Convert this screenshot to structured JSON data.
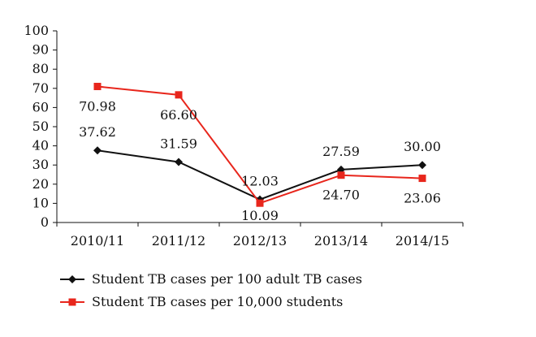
{
  "chart_data": {
    "type": "line",
    "categories": [
      "2010/11",
      "2011/12",
      "2012/13",
      "2013/14",
      "2014/15"
    ],
    "ylim": [
      0,
      100
    ],
    "yticks": [
      0,
      10,
      20,
      30,
      40,
      50,
      60,
      70,
      80,
      90,
      100
    ],
    "grid": false,
    "legend_position": "bottom",
    "series": [
      {
        "name": "Student TB cases per 100 adult TB cases",
        "values": [
          37.62,
          31.59,
          12.03,
          27.59,
          30.0
        ],
        "labels": [
          "37.62",
          "31.59",
          "12.03",
          "27.59",
          "30.00"
        ],
        "color": "#111111",
        "marker": "diamond"
      },
      {
        "name": "Student TB cases per 10,000 students",
        "values": [
          70.98,
          66.6,
          10.09,
          24.7,
          23.06
        ],
        "labels": [
          "70.98",
          "66.60",
          "10.09",
          "24.70",
          "23.06"
        ],
        "color": "#e8261c",
        "marker": "square"
      }
    ]
  }
}
